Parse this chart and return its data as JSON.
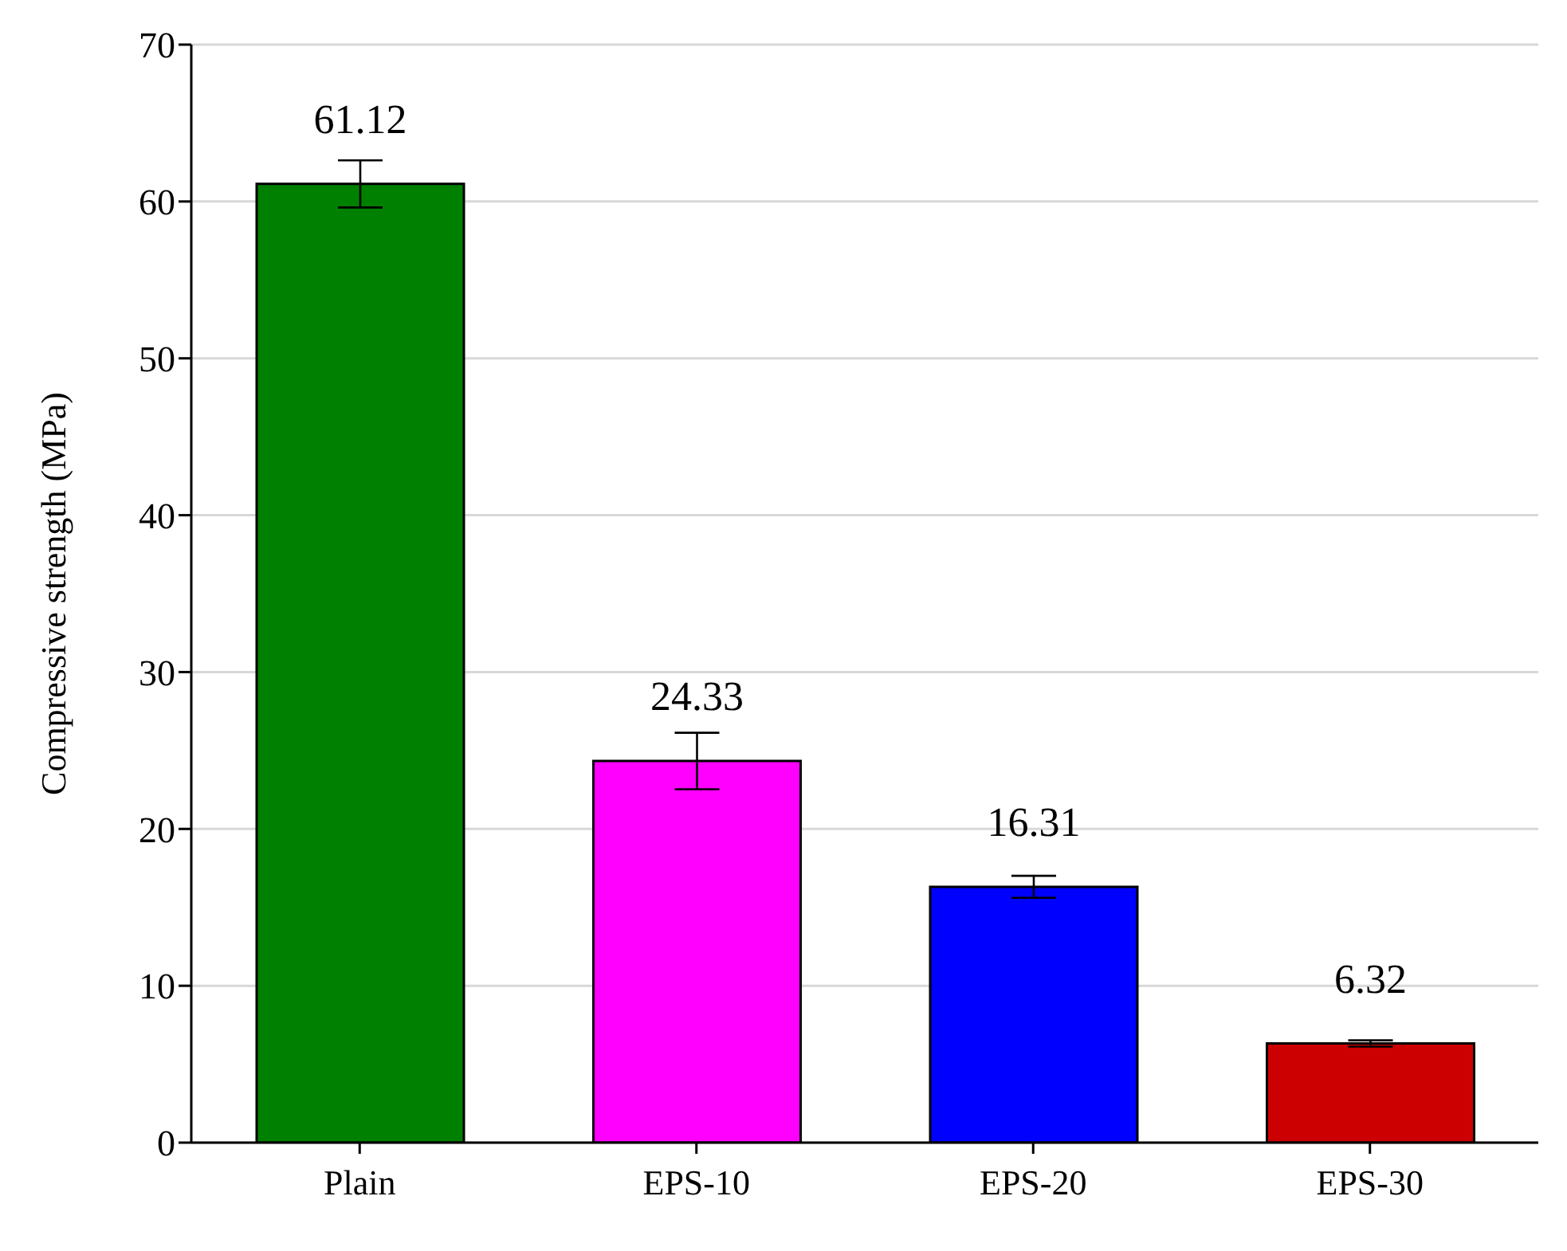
{
  "chart_data": {
    "type": "bar",
    "ylabel": "Compressive strength (MPa)",
    "categories": [
      "Plain",
      "EPS-10",
      "EPS-20",
      "EPS-30"
    ],
    "values": [
      61.12,
      24.33,
      16.31,
      6.32
    ],
    "errors": [
      1.5,
      1.8,
      0.7,
      0.2
    ],
    "colors": [
      "#008000",
      "#ff00ff",
      "#0000ff",
      "#cc0000"
    ],
    "data_labels": true,
    "ylim": [
      0,
      70
    ],
    "yticks": [
      0,
      10,
      20,
      30,
      40,
      50,
      60,
      70
    ],
    "grid": "y"
  }
}
